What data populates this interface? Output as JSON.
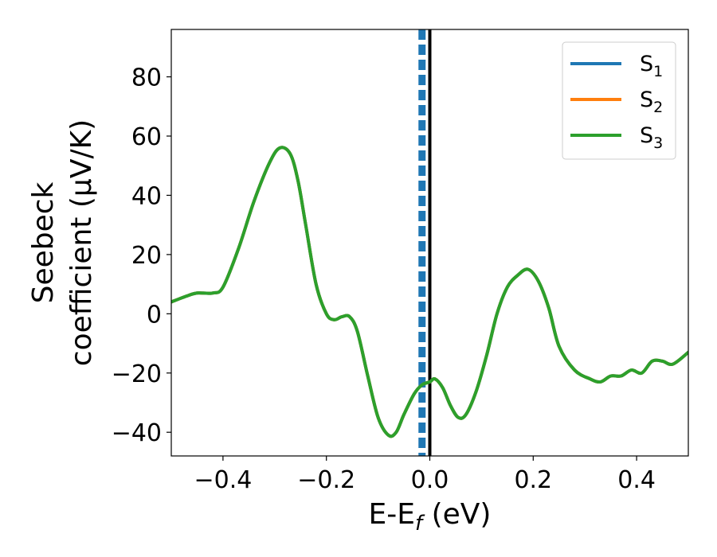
{
  "chart_data": {
    "type": "line",
    "xlabel": {
      "main": "E-E",
      "sub": "f",
      "unit": " (eV)"
    },
    "ylabel_line1": "Seebeck",
    "ylabel_line2": "coefficient  (μV/K)",
    "xlim": [
      -0.5,
      0.5
    ],
    "ylim": [
      -48,
      96
    ],
    "xticks": [
      -0.4,
      -0.2,
      0.0,
      0.2,
      0.4
    ],
    "xtick_labels": [
      "−0.4",
      "−0.2",
      "0.0",
      "0.2",
      "0.4"
    ],
    "yticks": [
      -40,
      -20,
      0,
      20,
      40,
      60,
      80
    ],
    "ytick_labels": [
      "−40",
      "−20",
      "0",
      "20",
      "40",
      "60",
      "80"
    ],
    "grid": false,
    "legend": {
      "placement": "top-right",
      "entries": [
        {
          "base": "S",
          "sub": "1",
          "color": "#1f77b4"
        },
        {
          "base": "S",
          "sub": "2",
          "color": "#ff7f0e"
        },
        {
          "base": "S",
          "sub": "3",
          "color": "#2ca02c"
        }
      ]
    },
    "vlines": [
      {
        "x": -0.015,
        "style": "dashed",
        "color": "#1f77b4"
      },
      {
        "x": 0.0,
        "style": "solid",
        "color": "#000000"
      }
    ],
    "series": [
      {
        "name": "S1",
        "color": "#1f77b4",
        "x": [
          -0.5,
          -0.47,
          -0.45,
          -0.42,
          -0.4,
          -0.37,
          -0.34,
          -0.31,
          -0.29,
          -0.27,
          -0.255,
          -0.24,
          -0.22,
          -0.2,
          -0.185,
          -0.17,
          -0.155,
          -0.14,
          -0.12,
          -0.1,
          -0.08,
          -0.065,
          -0.05,
          -0.03,
          -0.015,
          0.0,
          0.01,
          0.025,
          0.04,
          0.055,
          0.07,
          0.09,
          0.11,
          0.13,
          0.15,
          0.17,
          0.19,
          0.21,
          0.23,
          0.25,
          0.28,
          0.31,
          0.33,
          0.35,
          0.37,
          0.39,
          0.41,
          0.43,
          0.45,
          0.47,
          0.5
        ],
        "y": [
          4,
          6,
          7,
          7,
          9,
          22,
          38,
          51,
          56,
          54,
          45,
          30,
          10,
          0,
          -2,
          -1,
          -1,
          -6,
          -21,
          -35,
          -41,
          -40,
          -34,
          -27,
          -24,
          -23,
          -22,
          -25,
          -31,
          -35,
          -34,
          -26,
          -14,
          0,
          9,
          13,
          15,
          11,
          2,
          -11,
          -19,
          -22,
          -23,
          -21,
          -21,
          -19,
          -20,
          -16,
          -16,
          -17,
          -13
        ]
      },
      {
        "name": "S2",
        "color": "#ff7f0e",
        "x": [
          -0.5,
          -0.47,
          -0.45,
          -0.42,
          -0.4,
          -0.37,
          -0.34,
          -0.31,
          -0.29,
          -0.27,
          -0.255,
          -0.24,
          -0.22,
          -0.2,
          -0.185,
          -0.17,
          -0.155,
          -0.14,
          -0.12,
          -0.1,
          -0.08,
          -0.065,
          -0.05,
          -0.03,
          -0.015,
          0.0,
          0.01,
          0.025,
          0.04,
          0.055,
          0.07,
          0.09,
          0.11,
          0.13,
          0.15,
          0.17,
          0.19,
          0.21,
          0.23,
          0.25,
          0.28,
          0.31,
          0.33,
          0.35,
          0.37,
          0.39,
          0.41,
          0.43,
          0.45,
          0.47,
          0.5
        ],
        "y": [
          4,
          6,
          7,
          7,
          9,
          22,
          38,
          51,
          56,
          54,
          45,
          30,
          10,
          0,
          -2,
          -1,
          -1,
          -6,
          -21,
          -35,
          -41,
          -40,
          -34,
          -27,
          -24,
          -23,
          -22,
          -25,
          -31,
          -35,
          -34,
          -26,
          -14,
          0,
          9,
          13,
          15,
          11,
          2,
          -11,
          -19,
          -22,
          -23,
          -21,
          -21,
          -19,
          -20,
          -16,
          -16,
          -17,
          -13
        ]
      },
      {
        "name": "S3",
        "color": "#2ca02c",
        "x": [
          -0.5,
          -0.47,
          -0.45,
          -0.42,
          -0.4,
          -0.37,
          -0.34,
          -0.31,
          -0.29,
          -0.27,
          -0.255,
          -0.24,
          -0.22,
          -0.2,
          -0.185,
          -0.17,
          -0.155,
          -0.14,
          -0.12,
          -0.1,
          -0.08,
          -0.065,
          -0.05,
          -0.03,
          -0.015,
          0.0,
          0.01,
          0.025,
          0.04,
          0.055,
          0.07,
          0.09,
          0.11,
          0.13,
          0.15,
          0.17,
          0.19,
          0.21,
          0.23,
          0.25,
          0.28,
          0.31,
          0.33,
          0.35,
          0.37,
          0.39,
          0.41,
          0.43,
          0.45,
          0.47,
          0.5
        ],
        "y": [
          4,
          6,
          7,
          7,
          9,
          22,
          38,
          51,
          56,
          54,
          45,
          30,
          10,
          0,
          -2,
          -1,
          -1,
          -6,
          -21,
          -35,
          -41,
          -40,
          -34,
          -27,
          -24,
          -23,
          -22,
          -25,
          -31,
          -35,
          -34,
          -26,
          -14,
          0,
          9,
          13,
          15,
          11,
          2,
          -11,
          -19,
          -22,
          -23,
          -21,
          -21,
          -19,
          -20,
          -16,
          -16,
          -17,
          -13
        ]
      }
    ]
  }
}
